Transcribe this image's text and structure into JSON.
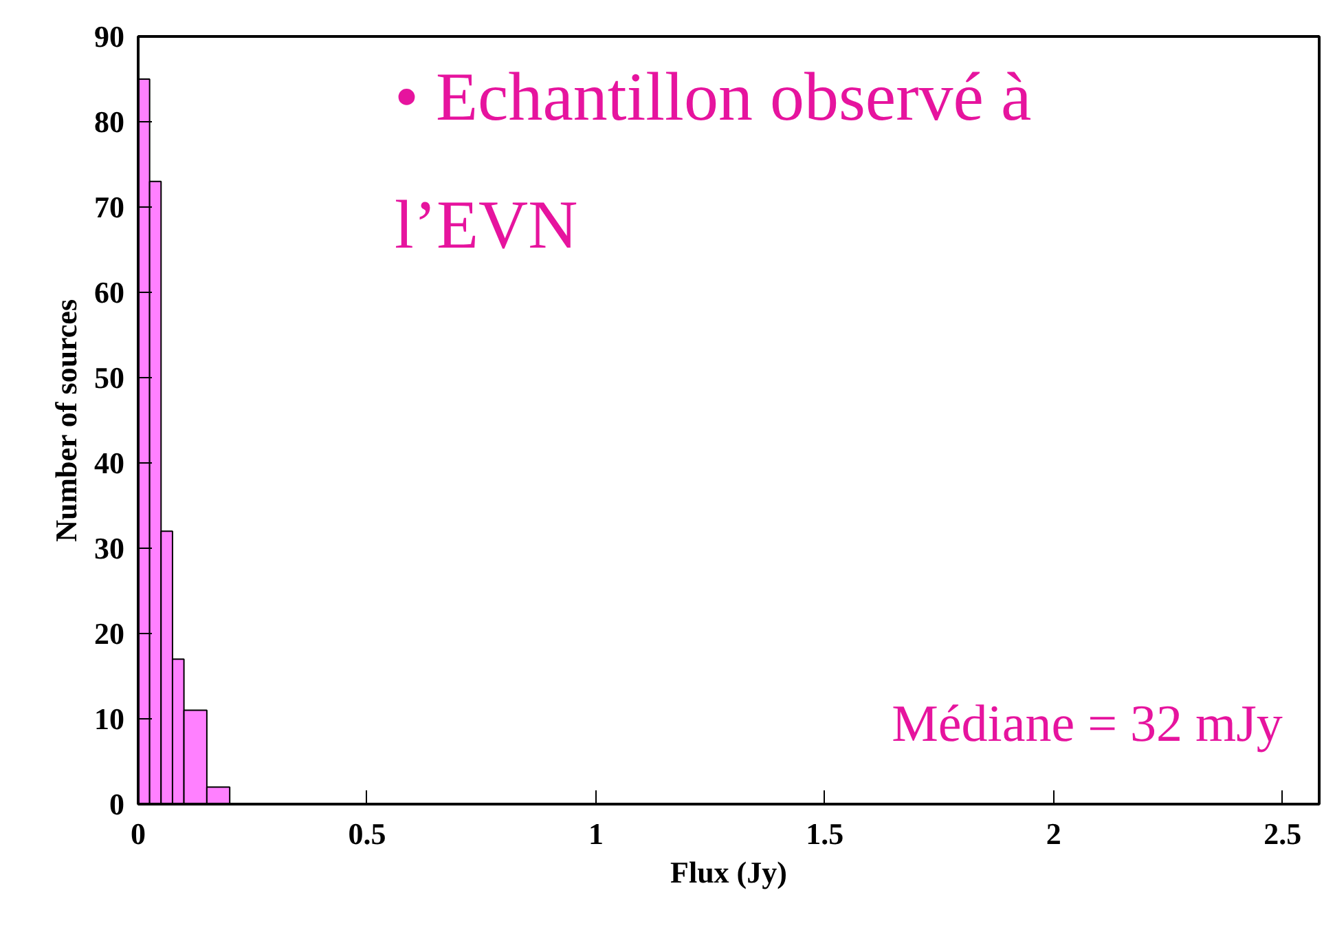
{
  "chart_data": {
    "type": "histogram",
    "xlabel": "Flux (Jy)",
    "ylabel": "Number of sources",
    "bins": [
      0,
      0.025,
      0.05,
      0.075,
      0.1,
      0.15,
      0.2
    ],
    "values": [
      85,
      73,
      32,
      17,
      11,
      2
    ],
    "color": "#ff80ff",
    "xlim": [
      0,
      2.58
    ],
    "ylim": [
      0,
      90
    ],
    "xticks": [
      0,
      0.5,
      1,
      1.5,
      2,
      2.5
    ],
    "yticks": [
      0,
      10,
      20,
      30,
      40,
      50,
      60,
      70,
      80,
      90
    ],
    "grid": false,
    "annotations": [
      "• Echantillon observé à\n   l’EVN",
      "Médiane = 32 mJy"
    ]
  }
}
